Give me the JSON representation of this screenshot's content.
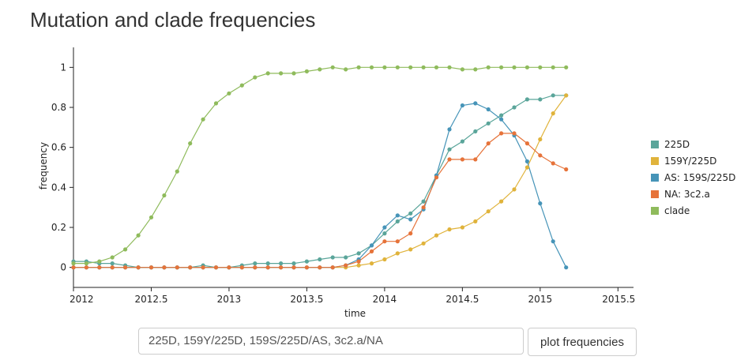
{
  "page": {
    "title": "Mutation and clade frequencies"
  },
  "controls": {
    "input_value": "225D, 159Y/225D, 159S/225D/AS, 3c2.a/NA",
    "button_label": "plot frequencies"
  },
  "chart_data": {
    "type": "line",
    "xlabel": "time",
    "ylabel": "frequency",
    "xlim": [
      2012,
      2015.6
    ],
    "ylim": [
      -0.1,
      1.1
    ],
    "x_ticks": [
      "2012",
      "2012.5",
      "2013",
      "2013.5",
      "2014",
      "2014.5",
      "2015",
      "2015.5"
    ],
    "y_ticks": [
      "0",
      "0.2",
      "0.4",
      "0.6",
      "0.8",
      "1"
    ],
    "grid": false,
    "legend_position": "right",
    "x": [
      2012.0,
      2012.0833,
      2012.1667,
      2012.25,
      2012.3333,
      2012.4167,
      2012.5,
      2012.5833,
      2012.6667,
      2012.75,
      2012.8333,
      2012.9167,
      2013.0,
      2013.0833,
      2013.1667,
      2013.25,
      2013.3333,
      2013.4167,
      2013.5,
      2013.5833,
      2013.6667,
      2013.75,
      2013.8333,
      2013.9167,
      2014.0,
      2014.0833,
      2014.1667,
      2014.25,
      2014.3333,
      2014.4167,
      2014.5,
      2014.5833,
      2014.6667,
      2014.75,
      2014.8333,
      2014.9167,
      2015.0,
      2015.0833,
      2015.1667
    ],
    "series": [
      {
        "name": "225D",
        "color": "#5aa59a",
        "values": [
          0.03,
          0.03,
          0.02,
          0.02,
          0.01,
          0.0,
          0.0,
          0.0,
          0.0,
          0.0,
          0.01,
          0.0,
          0.0,
          0.01,
          0.02,
          0.02,
          0.02,
          0.02,
          0.03,
          0.04,
          0.05,
          0.05,
          0.07,
          0.11,
          0.17,
          0.23,
          0.27,
          0.33,
          0.46,
          0.59,
          0.63,
          0.68,
          0.72,
          0.76,
          0.8,
          0.84,
          0.84,
          0.86,
          0.86
        ]
      },
      {
        "name": "159Y/225D",
        "color": "#e0b33b",
        "values": [
          0.0,
          0.0,
          0.0,
          0.0,
          0.0,
          0.0,
          0.0,
          0.0,
          0.0,
          0.0,
          0.0,
          0.0,
          0.0,
          0.0,
          0.0,
          0.0,
          0.0,
          0.0,
          0.0,
          0.0,
          0.0,
          0.0,
          0.01,
          0.02,
          0.04,
          0.07,
          0.09,
          0.12,
          0.16,
          0.19,
          0.2,
          0.23,
          0.28,
          0.33,
          0.39,
          0.5,
          0.64,
          0.77,
          0.86
        ]
      },
      {
        "name": "AS: 159S/225D",
        "color": "#4694b8",
        "values": [
          0.0,
          0.0,
          0.0,
          0.0,
          0.0,
          0.0,
          0.0,
          0.0,
          0.0,
          0.0,
          0.0,
          0.0,
          0.0,
          0.0,
          0.0,
          0.0,
          0.0,
          0.0,
          0.0,
          0.0,
          0.0,
          0.01,
          0.04,
          0.11,
          0.2,
          0.26,
          0.24,
          0.29,
          0.46,
          0.69,
          0.81,
          0.82,
          0.79,
          0.74,
          0.66,
          0.53,
          0.32,
          0.13,
          0.0
        ]
      },
      {
        "name": "NA: 3c2.a",
        "color": "#e6733a",
        "values": [
          0.0,
          0.0,
          0.0,
          0.0,
          0.0,
          0.0,
          0.0,
          0.0,
          0.0,
          0.0,
          0.0,
          0.0,
          0.0,
          0.0,
          0.0,
          0.0,
          0.0,
          0.0,
          0.0,
          0.0,
          0.0,
          0.01,
          0.03,
          0.08,
          0.13,
          0.13,
          0.17,
          0.3,
          0.45,
          0.54,
          0.54,
          0.54,
          0.62,
          0.67,
          0.67,
          0.62,
          0.56,
          0.52,
          0.49
        ]
      },
      {
        "name": "clade",
        "color": "#8fbb5c",
        "values": [
          0.02,
          0.02,
          0.03,
          0.05,
          0.09,
          0.16,
          0.25,
          0.36,
          0.48,
          0.62,
          0.74,
          0.82,
          0.87,
          0.91,
          0.95,
          0.97,
          0.97,
          0.97,
          0.98,
          0.99,
          1.0,
          0.99,
          1.0,
          1.0,
          1.0,
          1.0,
          1.0,
          1.0,
          1.0,
          1.0,
          0.99,
          0.99,
          1.0,
          1.0,
          1.0,
          1.0,
          1.0,
          1.0,
          1.0
        ]
      }
    ]
  }
}
